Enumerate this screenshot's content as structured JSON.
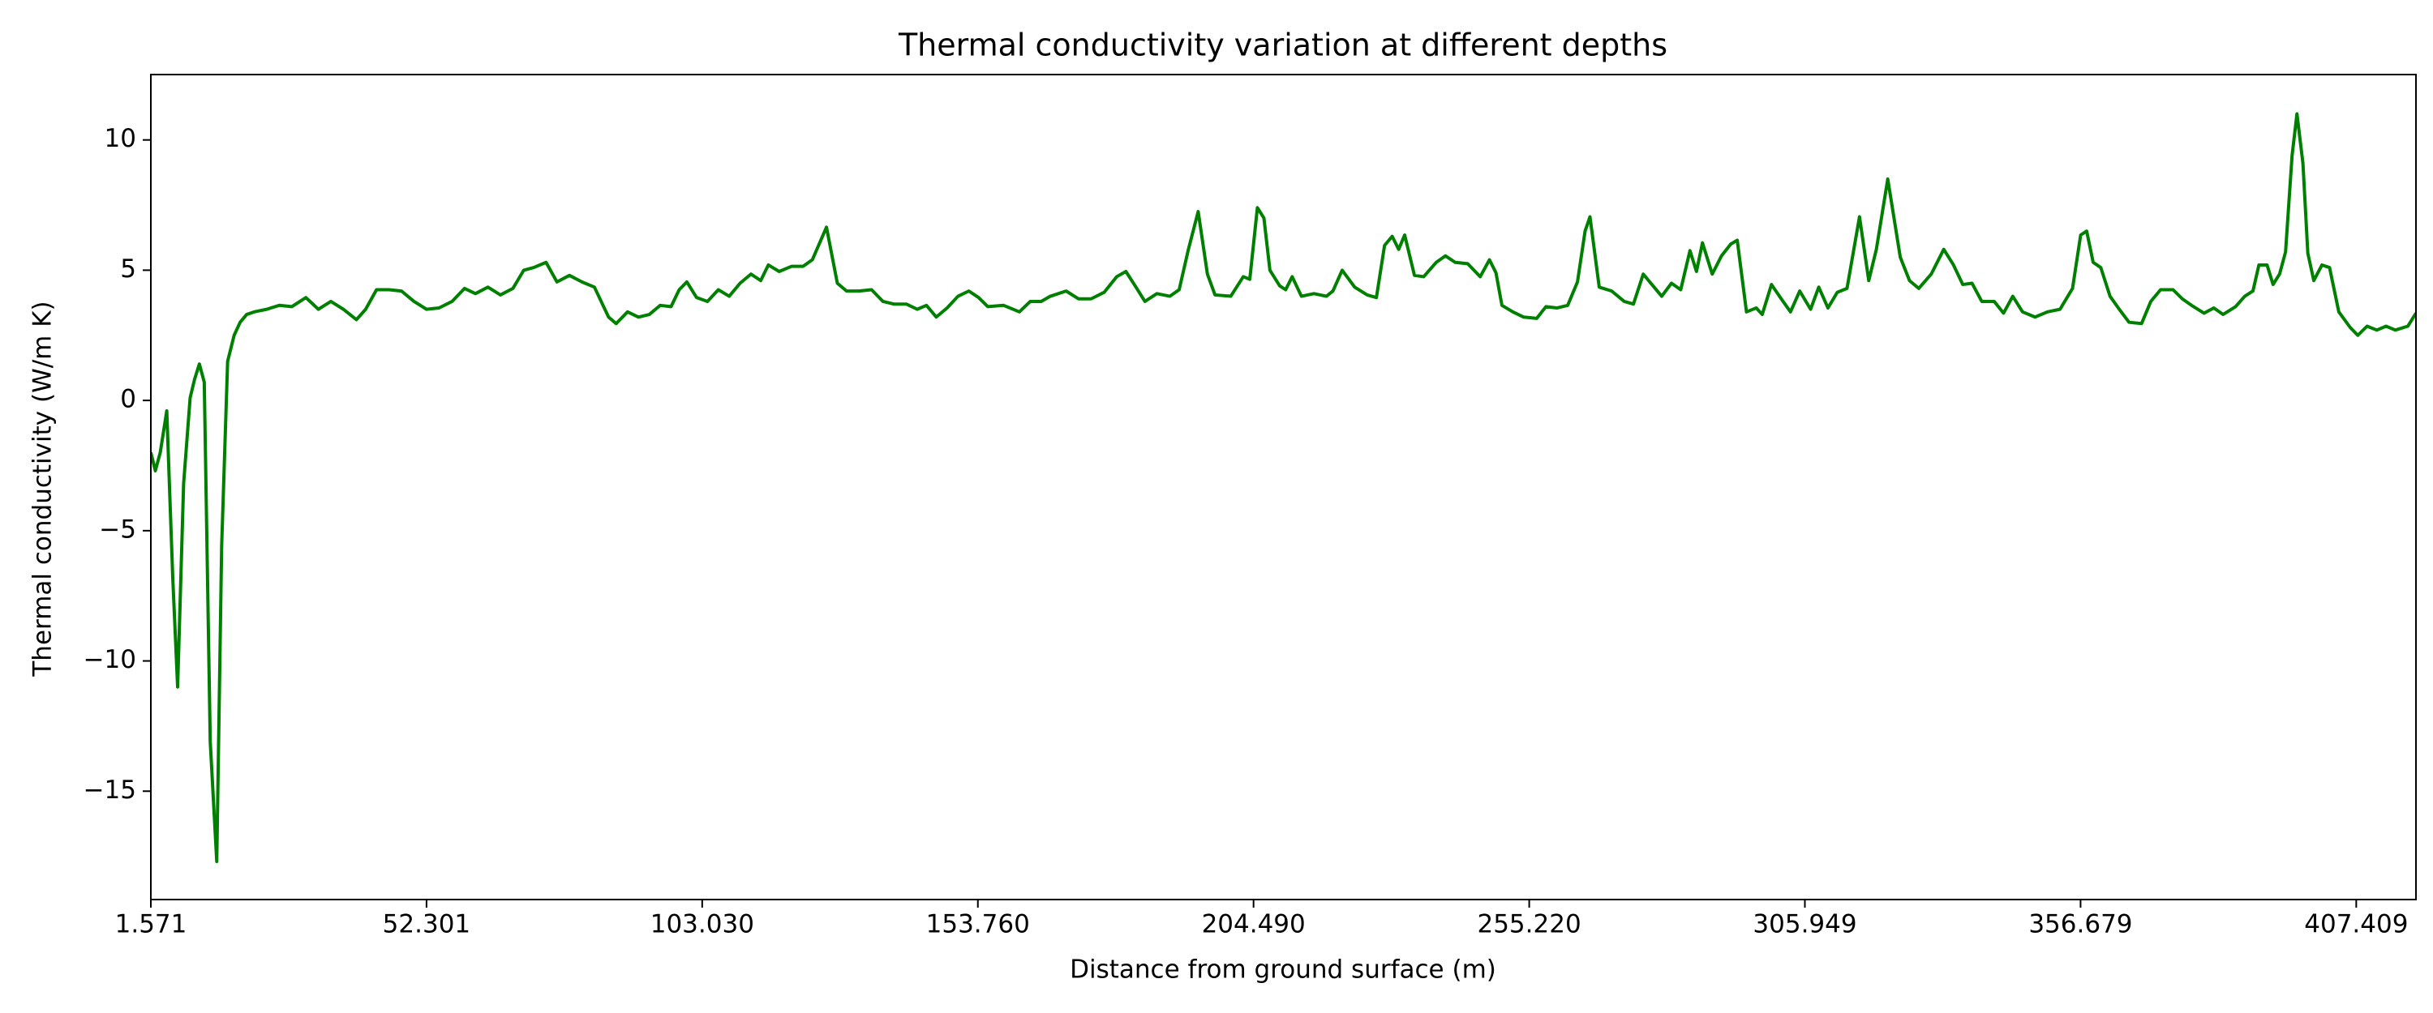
{
  "chart_data": {
    "type": "line",
    "title": "Thermal conductivity variation at different depths",
    "x_label": "Distance from ground surface (m)",
    "y_label": "Thermal conductivity (W/m K)",
    "color": "#008000",
    "xlim": [
      1.571,
      418.4
    ],
    "ylim": [
      -19.16,
      12.51
    ],
    "xticks": [
      1.571,
      52.301,
      {
        "value": 103.03,
        "label": "103.030"
      },
      {
        "value": 153.76,
        "label": "153.760"
      },
      {
        "value": 204.49,
        "label": "204.490"
      },
      {
        "value": 255.22,
        "label": "255.220"
      },
      305.949,
      356.679,
      407.409
    ],
    "yticks": [
      {
        "value": -15,
        "label": "−15"
      },
      {
        "value": -10,
        "label": "−10"
      },
      {
        "value": -5,
        "label": "−5"
      },
      0,
      5,
      10
    ],
    "x": [
      1.571,
      2.4,
      3.3,
      4.5,
      5.6,
      6.5,
      7.6,
      8.8,
      9.6,
      10.5,
      11.4,
      12.5,
      13.7,
      14.6,
      15.7,
      16.9,
      18.0,
      19.2,
      20.6,
      22.9,
      25.2,
      27.5,
      30.1,
      32.4,
      34.7,
      37.0,
      39.4,
      41.1,
      43.1,
      45.4,
      47.7,
      50.0,
      52.3,
      54.6,
      57.0,
      59.3,
      61.3,
      63.6,
      65.9,
      68.2,
      70.2,
      72.0,
      74.3,
      76.3,
      78.6,
      80.9,
      83.2,
      85.8,
      87.2,
      89.3,
      91.3,
      93.3,
      95.3,
      97.3,
      98.8,
      100.2,
      102.0,
      104.0,
      106.0,
      108.0,
      110.0,
      112.0,
      113.8,
      115.2,
      117.2,
      119.5,
      121.6,
      123.3,
      125.9,
      127.9,
      129.6,
      131.9,
      134.2,
      136.3,
      138.3,
      140.6,
      142.6,
      144.3,
      146.1,
      148.1,
      150.1,
      152.1,
      153.9,
      155.6,
      158.5,
      161.4,
      163.4,
      165.4,
      167.1,
      170.0,
      172.3,
      174.6,
      177.0,
      179.3,
      181.0,
      182.7,
      184.5,
      186.7,
      189.1,
      190.8,
      192.5,
      194.3,
      196.0,
      197.4,
      200.3,
      202.6,
      203.8,
      205.2,
      206.4,
      207.5,
      209.3,
      210.4,
      211.6,
      213.3,
      215.6,
      217.9,
      219.1,
      220.8,
      223.1,
      225.4,
      227.1,
      228.6,
      230.0,
      231.2,
      232.3,
      234.1,
      235.8,
      238.1,
      239.8,
      241.6,
      243.9,
      246.2,
      247.9,
      249.1,
      250.2,
      252.2,
      254.2,
      256.6,
      258.3,
      260.3,
      262.3,
      264.1,
      265.5,
      266.4,
      268.1,
      270.4,
      272.7,
      274.4,
      276.2,
      278.2,
      279.6,
      281.4,
      283.1,
      284.8,
      286.0,
      287.1,
      288.9,
      290.6,
      292.3,
      293.5,
      295.2,
      297.0,
      298.1,
      299.8,
      301.6,
      303.3,
      305.0,
      307.0,
      308.5,
      310.2,
      311.9,
      313.7,
      316.0,
      317.7,
      319.1,
      321.2,
      323.5,
      325.2,
      326.9,
      329.2,
      331.5,
      333.3,
      335.0,
      336.7,
      338.5,
      340.8,
      342.5,
      344.2,
      346.0,
      348.3,
      350.6,
      352.9,
      355.2,
      356.7,
      357.8,
      359.0,
      360.4,
      362.1,
      363.8,
      365.6,
      367.9,
      369.6,
      371.4,
      373.7,
      375.4,
      377.1,
      379.4,
      381.2,
      382.9,
      385.2,
      386.9,
      388.4,
      389.5,
      391.0,
      392.1,
      393.3,
      394.4,
      395.6,
      396.5,
      397.6,
      398.5,
      399.6,
      401.1,
      402.5,
      404.2,
      406.3,
      407.7,
      409.4,
      411.2,
      412.9,
      414.6,
      416.9,
      418.4
    ],
    "values": [
      -2.0,
      -2.7,
      -2.0,
      -0.4,
      -6.8,
      -11.0,
      -3.2,
      0.1,
      0.8,
      1.4,
      0.7,
      -13.1,
      -17.7,
      -5.6,
      1.5,
      2.5,
      3.0,
      3.3,
      3.4,
      3.5,
      3.65,
      3.6,
      3.95,
      3.5,
      3.8,
      3.5,
      3.1,
      3.5,
      4.25,
      4.25,
      4.2,
      3.8,
      3.5,
      3.55,
      3.8,
      4.3,
      4.1,
      4.35,
      4.05,
      4.3,
      5.0,
      5.1,
      5.3,
      4.55,
      4.8,
      4.55,
      4.35,
      3.2,
      2.95,
      3.4,
      3.2,
      3.3,
      3.65,
      3.6,
      4.25,
      4.55,
      3.95,
      3.8,
      4.25,
      4.0,
      4.5,
      4.85,
      4.6,
      5.2,
      4.95,
      5.15,
      5.15,
      5.4,
      6.65,
      4.5,
      4.2,
      4.2,
      4.25,
      3.8,
      3.7,
      3.7,
      3.5,
      3.65,
      3.2,
      3.55,
      4.0,
      4.2,
      3.95,
      3.6,
      3.65,
      3.4,
      3.8,
      3.8,
      4.0,
      4.2,
      3.9,
      3.9,
      4.15,
      4.75,
      4.95,
      4.4,
      3.8,
      4.1,
      4.0,
      4.25,
      5.8,
      7.25,
      4.85,
      4.05,
      4.0,
      4.75,
      4.65,
      7.4,
      7.0,
      5.0,
      4.4,
      4.25,
      4.75,
      4.0,
      4.1,
      4.0,
      4.2,
      5.0,
      4.35,
      4.05,
      3.95,
      5.95,
      6.3,
      5.8,
      6.35,
      4.8,
      4.75,
      5.3,
      5.55,
      5.3,
      5.25,
      4.75,
      5.4,
      4.9,
      3.65,
      3.4,
      3.2,
      3.15,
      3.6,
      3.55,
      3.65,
      4.55,
      6.5,
      7.05,
      4.35,
      4.2,
      3.8,
      3.7,
      4.85,
      4.35,
      4.0,
      4.5,
      4.25,
      5.75,
      4.95,
      6.05,
      4.85,
      5.55,
      6.0,
      6.15,
      3.4,
      3.55,
      3.3,
      4.45,
      3.9,
      3.4,
      4.2,
      3.5,
      4.35,
      3.55,
      4.15,
      4.3,
      7.05,
      4.6,
      5.8,
      8.5,
      5.5,
      4.6,
      4.3,
      4.85,
      5.8,
      5.2,
      4.45,
      4.5,
      3.8,
      3.8,
      3.35,
      4.0,
      3.4,
      3.2,
      3.4,
      3.5,
      4.3,
      6.35,
      6.5,
      5.3,
      5.1,
      4.0,
      3.5,
      3.0,
      2.95,
      3.8,
      4.25,
      4.25,
      3.9,
      3.65,
      3.35,
      3.55,
      3.3,
      3.6,
      4.0,
      4.2,
      5.2,
      5.2,
      4.45,
      4.85,
      5.7,
      9.4,
      11.0,
      9.1,
      5.65,
      4.6,
      5.2,
      5.1,
      3.4,
      2.8,
      2.5,
      2.85,
      2.7,
      2.85,
      2.7,
      2.85,
      3.35
    ]
  }
}
